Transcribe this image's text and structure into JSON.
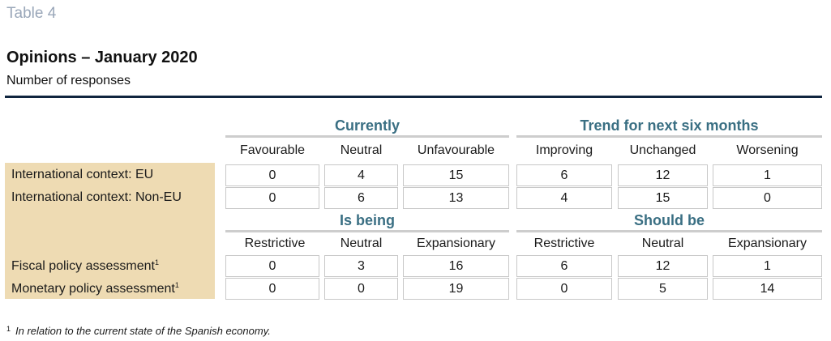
{
  "table_number": "Table 4",
  "title": "Opinions – January 2020",
  "subtitle": "Number of responses",
  "section1": {
    "group_left": "Currently",
    "group_right": "Trend for next six months",
    "columns": [
      "Favourable",
      "Neutral",
      "Unfavourable",
      "Improving",
      "Unchanged",
      "Worsening"
    ],
    "rows": [
      {
        "label": "International context: EU",
        "values": [
          "0",
          "4",
          "15",
          "6",
          "12",
          "1"
        ]
      },
      {
        "label": "International context: Non-EU",
        "values": [
          "0",
          "6",
          "13",
          "4",
          "15",
          "0"
        ]
      }
    ]
  },
  "section2": {
    "group_left": "Is being",
    "group_right": "Should be",
    "columns": [
      "Restrictive",
      "Neutral",
      "Expansionary",
      "Restrictive",
      "Neutral",
      "Expansionary"
    ],
    "rows": [
      {
        "label": "Fiscal policy assessment",
        "note": "1",
        "values": [
          "0",
          "3",
          "16",
          "6",
          "12",
          "1"
        ]
      },
      {
        "label": "Monetary policy assessment",
        "note": "1",
        "values": [
          "0",
          "0",
          "19",
          "0",
          "5",
          "14"
        ]
      }
    ]
  },
  "footnote": {
    "marker": "1",
    "text": "In relation to the current state of the Spanish economy."
  },
  "colors": {
    "title_grey": "#9aa7b9",
    "rule_navy": "#10253f",
    "group_teal": "#3a6f83",
    "label_beige": "#eedbb3"
  }
}
